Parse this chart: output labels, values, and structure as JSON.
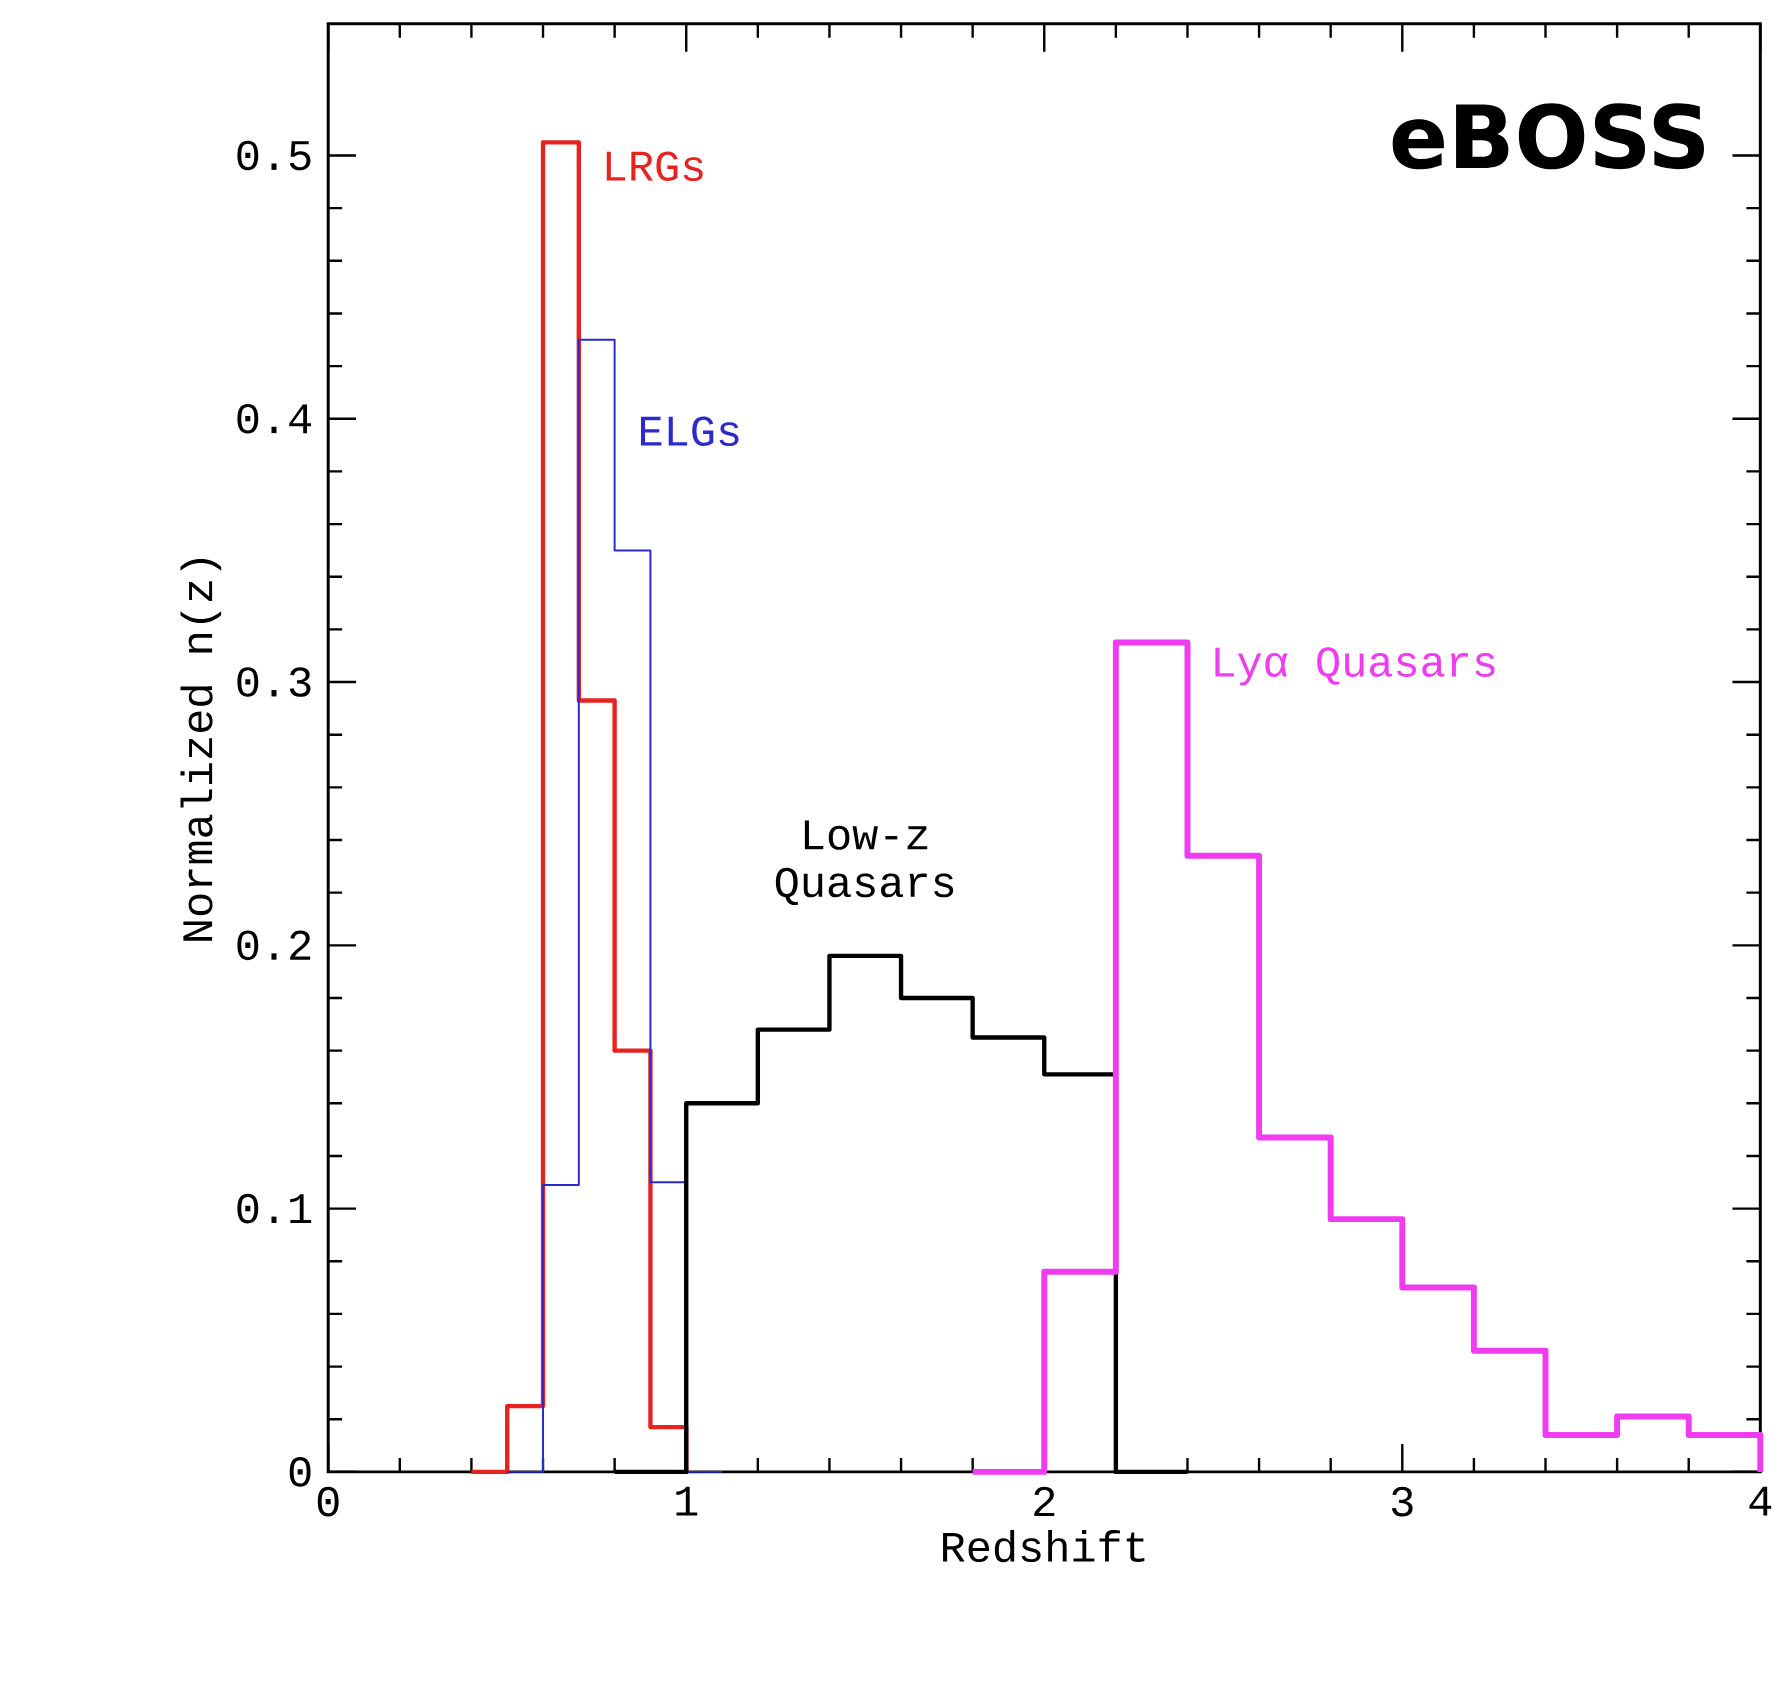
{
  "chart_data": {
    "type": "step",
    "xlabel": "Redshift",
    "ylabel": "Normalized n(z)",
    "xlim": [
      0,
      4
    ],
    "ylim": [
      0,
      0.55
    ],
    "xticks": [
      0,
      1,
      2,
      3,
      4
    ],
    "yticks": [
      0,
      0.1,
      0.2,
      0.3,
      0.4,
      0.5
    ],
    "annotations": [
      "eBOSS"
    ],
    "series": [
      {
        "name": "LRGs",
        "color": "#e8221f",
        "x": [
          0.4,
          0.5,
          0.6,
          0.7,
          0.8,
          0.9,
          1.0
        ],
        "values": [
          0,
          0.025,
          0.505,
          0.293,
          0.16,
          0.017,
          0
        ]
      },
      {
        "name": "ELGs",
        "color": "#2a2ad0",
        "x": [
          0.5,
          0.6,
          0.7,
          0.8,
          0.9,
          1.0,
          1.1
        ],
        "values": [
          0,
          0.109,
          0.43,
          0.35,
          0.11,
          0,
          0
        ]
      },
      {
        "name": "Low-z Quasars",
        "color": "#000000",
        "x": [
          0.8,
          1.0,
          1.2,
          1.4,
          1.6,
          1.8,
          2.0,
          2.2,
          2.4
        ],
        "values": [
          0,
          0.14,
          0.168,
          0.196,
          0.18,
          0.165,
          0.151,
          0,
          0
        ]
      },
      {
        "name": "Lyα Quasars",
        "color": "#f03cf0",
        "x": [
          1.8,
          2.0,
          2.2,
          2.4,
          2.6,
          2.8,
          3.0,
          3.2,
          3.4,
          3.6,
          3.8,
          4.0
        ],
        "values": [
          0,
          0.076,
          0.315,
          0.234,
          0.127,
          0.096,
          0.07,
          0.046,
          0.014,
          0.021,
          0.014,
          0
        ]
      }
    ]
  }
}
